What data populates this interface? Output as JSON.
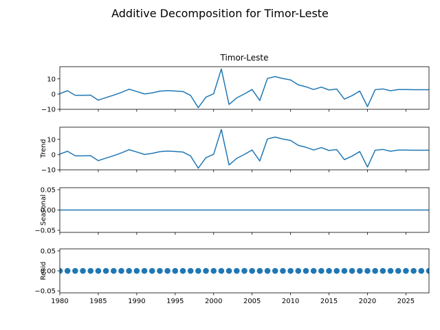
{
  "figure": {
    "suptitle": "Additive Decomposition for Timor-Leste",
    "panel_title": "Timor-Leste",
    "line_color": "#1f77b4"
  },
  "chart_data": {
    "type": "line",
    "title": "Additive Decomposition for Timor-Leste",
    "x": [
      1980,
      1981,
      1982,
      1983,
      1984,
      1985,
      1986,
      1987,
      1988,
      1989,
      1990,
      1991,
      1992,
      1993,
      1994,
      1995,
      1996,
      1997,
      1998,
      1999,
      2000,
      2001,
      2002,
      2003,
      2004,
      2005,
      2006,
      2007,
      2008,
      2009,
      2010,
      2011,
      2012,
      2013,
      2014,
      2015,
      2016,
      2017,
      2018,
      2019,
      2020,
      2021,
      2022,
      2023,
      2024,
      2025,
      2026,
      2027,
      2028
    ],
    "xlim": [
      1980,
      2028
    ],
    "xticks": [
      "1980",
      "1985",
      "1990",
      "1995",
      "2000",
      "2005",
      "2010",
      "2015",
      "2020",
      "2025"
    ],
    "panels": [
      {
        "name": "Timor-Leste",
        "ylabel": "",
        "style": "line",
        "ylim": [
          -10,
          18
        ],
        "yticks": [
          "−10",
          "0",
          "10"
        ],
        "values": [
          0.3,
          2.2,
          -0.8,
          -0.8,
          -0.7,
          -4.0,
          -2.3,
          -0.7,
          1.1,
          3.2,
          1.7,
          0.1,
          0.8,
          1.9,
          2.3,
          2.0,
          1.7,
          -0.9,
          -8.9,
          -2.0,
          0.2,
          16.5,
          -6.8,
          -2.5,
          0.1,
          3.0,
          -4.2,
          10.3,
          11.5,
          10.2,
          9.3,
          6.1,
          4.8,
          3.0,
          4.6,
          2.7,
          3.3,
          -3.3,
          -1.0,
          2.0,
          -8.2,
          2.9,
          3.4,
          2.2,
          3.0,
          3.0,
          2.9,
          2.9,
          2.9
        ]
      },
      {
        "name": "Trend",
        "ylabel": "Trend",
        "style": "line",
        "ylim": [
          -10,
          18
        ],
        "yticks": [
          "−10",
          "0",
          "10"
        ],
        "values": [
          0.3,
          2.2,
          -0.8,
          -0.8,
          -0.7,
          -4.0,
          -2.3,
          -0.7,
          1.1,
          3.2,
          1.7,
          0.1,
          0.8,
          1.9,
          2.3,
          2.0,
          1.7,
          -0.9,
          -8.9,
          -2.0,
          0.2,
          16.5,
          -6.8,
          -2.5,
          0.1,
          3.0,
          -4.2,
          10.3,
          11.5,
          10.2,
          9.3,
          6.1,
          4.8,
          3.0,
          4.6,
          2.7,
          3.3,
          -3.3,
          -1.0,
          2.0,
          -8.2,
          2.9,
          3.4,
          2.2,
          3.0,
          3.0,
          2.9,
          2.9,
          2.9
        ]
      },
      {
        "name": "Seasonal",
        "ylabel": "Seasonal",
        "style": "line",
        "ylim": [
          -0.055,
          0.055
        ],
        "yticks": [
          "−0.05",
          "0.00",
          "0.05"
        ],
        "values": [
          0,
          0,
          0,
          0,
          0,
          0,
          0,
          0,
          0,
          0,
          0,
          0,
          0,
          0,
          0,
          0,
          0,
          0,
          0,
          0,
          0,
          0,
          0,
          0,
          0,
          0,
          0,
          0,
          0,
          0,
          0,
          0,
          0,
          0,
          0,
          0,
          0,
          0,
          0,
          0,
          0,
          0,
          0,
          0,
          0,
          0,
          0,
          0,
          0
        ]
      },
      {
        "name": "Resid",
        "ylabel": "Resid",
        "style": "markers",
        "ylim": [
          -0.055,
          0.055
        ],
        "yticks": [
          "−0.05",
          "0.00",
          "0.05"
        ],
        "values": [
          0,
          0,
          0,
          0,
          0,
          0,
          0,
          0,
          0,
          0,
          0,
          0,
          0,
          0,
          0,
          0,
          0,
          0,
          0,
          0,
          0,
          0,
          0,
          0,
          0,
          0,
          0,
          0,
          0,
          0,
          0,
          0,
          0,
          0,
          0,
          0,
          0,
          0,
          0,
          0,
          0,
          0,
          0,
          0,
          0,
          0,
          0,
          0,
          0
        ]
      }
    ]
  }
}
